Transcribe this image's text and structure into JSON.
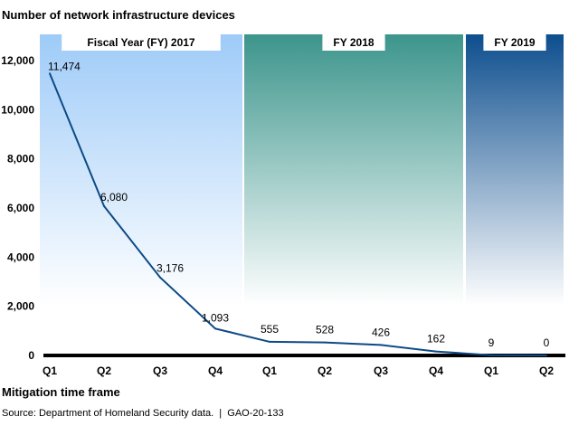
{
  "chart_data": {
    "type": "line",
    "title": "Number of network infrastructure devices",
    "xlabel": "Mitigation time frame",
    "ylabel": "",
    "source": "Source: Department of Homeland Security data.  |  GAO-20-133",
    "categories": [
      "Q1",
      "Q2",
      "Q3",
      "Q4",
      "Q1",
      "Q2",
      "Q3",
      "Q4",
      "Q1",
      "Q2"
    ],
    "periods": [
      {
        "label": "Fiscal Year (FY) 2017",
        "quarters": 4,
        "color": "#9ecbf8"
      },
      {
        "label": "FY 2018",
        "quarters": 4,
        "color": "#3c958c"
      },
      {
        "label": "FY 2019",
        "quarters": 2,
        "color": "#0d4e8e"
      }
    ],
    "series": [
      {
        "values": [
          11474,
          6080,
          3176,
          1093,
          555,
          528,
          426,
          162,
          9,
          0
        ],
        "labels": [
          "11,474",
          "6,080",
          "3,176",
          "1,093",
          "555",
          "528",
          "426",
          "162",
          "9",
          "0"
        ],
        "color": "#0d4a86"
      }
    ],
    "yticks": [
      "0",
      "2,000",
      "4,000",
      "6,000",
      "8,000",
      "10,000",
      "12,000"
    ],
    "ylim": [
      0,
      13000
    ],
    "grid": false
  }
}
